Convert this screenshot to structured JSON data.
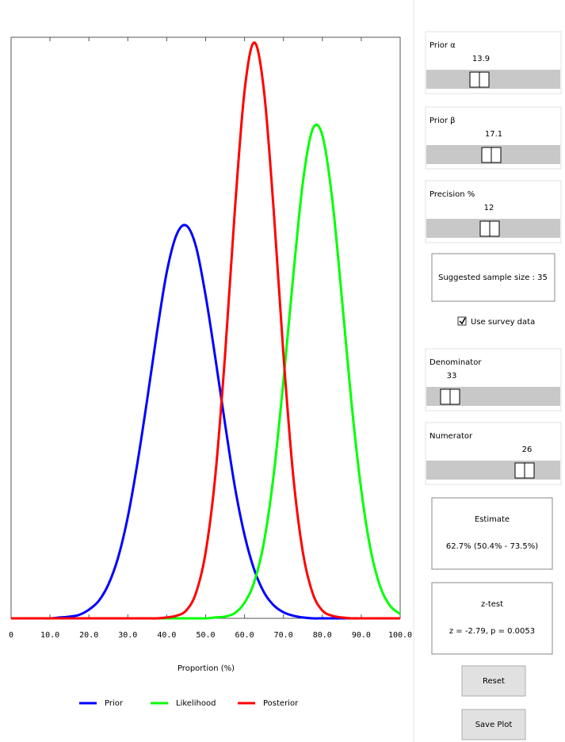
{
  "chart_data": {
    "type": "line",
    "x_label": "Proportion (%)",
    "x": [
      0,
      2.5,
      5,
      7.5,
      10,
      12.5,
      15,
      17.5,
      20,
      22.5,
      25,
      27.5,
      30,
      32.5,
      35,
      37.5,
      40,
      42.5,
      45,
      47.5,
      50,
      52.5,
      55,
      57.5,
      60,
      62.5,
      65,
      67.5,
      70,
      72.5,
      75,
      77.5,
      80,
      82.5,
      85,
      87.5,
      90,
      92.5,
      95,
      97.5,
      100
    ],
    "series": [
      {
        "name": "Prior",
        "color": "#0000ff",
        "values": [
          0,
          0,
          0,
          0,
          0,
          0.01,
          0.02,
          0.04,
          0.1,
          0.2,
          0.39,
          0.7,
          1.17,
          1.8,
          2.53,
          3.3,
          3.99,
          4.42,
          4.53,
          4.29,
          3.72,
          3.0,
          2.24,
          1.52,
          0.96,
          0.56,
          0.3,
          0.15,
          0.07,
          0.03,
          0.01,
          0,
          0,
          0,
          0,
          0,
          0,
          0,
          0,
          0,
          0
        ]
      },
      {
        "name": "Likelihood",
        "color": "#00ff00",
        "values": [
          0,
          0,
          0,
          0,
          0,
          0,
          0,
          0,
          0,
          0,
          0,
          0,
          0,
          0,
          0,
          0,
          0,
          0,
          0,
          0,
          0,
          0.01,
          0.02,
          0.06,
          0.18,
          0.42,
          0.88,
          1.66,
          2.74,
          3.94,
          5.03,
          5.64,
          5.57,
          4.85,
          3.7,
          2.48,
          1.48,
          0.77,
          0.35,
          0.14,
          0.05
        ]
      },
      {
        "name": "Posterior",
        "color": "#ff0000",
        "values": [
          0,
          0,
          0,
          0,
          0,
          0,
          0,
          0,
          0,
          0,
          0,
          0,
          0,
          0,
          0,
          0,
          0.01,
          0.03,
          0.09,
          0.29,
          0.76,
          1.65,
          3.04,
          4.7,
          6.08,
          6.64,
          6.08,
          4.7,
          3.04,
          1.65,
          0.76,
          0.29,
          0.09,
          0.03,
          0.01,
          0,
          0,
          0,
          0,
          0,
          0
        ]
      }
    ],
    "xlim": [
      0,
      100
    ],
    "xticks": [
      0,
      {
        "value": 10,
        "label": "10.0"
      },
      {
        "value": 20,
        "label": "20.0"
      },
      {
        "value": 30,
        "label": "30.0"
      },
      {
        "value": 40,
        "label": "40.0"
      },
      {
        "value": 50,
        "label": "50.0"
      },
      {
        "value": 60,
        "label": "60.0"
      },
      {
        "value": 70,
        "label": "70.0"
      },
      {
        "value": 80,
        "label": "80.0"
      },
      {
        "value": 90,
        "label": "90.0"
      },
      {
        "value": 100,
        "label": "100.0"
      }
    ],
    "ylim": [
      0,
      6.7
    ],
    "legend": "bottom"
  },
  "controls": {
    "sliders": [
      {
        "label": "Prior α",
        "value": 13.9
      },
      {
        "label": "Prior β",
        "value": 17.1
      },
      {
        "label": "Precision %",
        "value": 12
      },
      {
        "label": "Denominator",
        "value": 33
      },
      {
        "label": "Numerator",
        "value": 26
      }
    ],
    "sample_size": "Suggested sample size : 35",
    "checkbox": {
      "label": "Use survey data",
      "checked": true
    },
    "estimate": {
      "title": "Estimate",
      "text": "62.7% (50.4% - 73.5%)"
    },
    "ztest": {
      "title": "z-test",
      "text": "z = -2.79, p = 0.0053"
    },
    "buttons": [
      "Reset",
      "Save Plot"
    ]
  }
}
